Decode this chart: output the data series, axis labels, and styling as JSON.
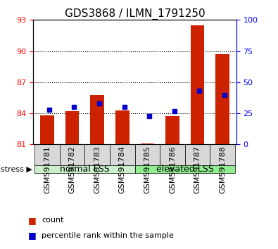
{
  "title": "GDS3868 / ILMN_1791250",
  "categories": [
    "GSM591781",
    "GSM591782",
    "GSM591783",
    "GSM591784",
    "GSM591785",
    "GSM591786",
    "GSM591787",
    "GSM591788"
  ],
  "red_values": [
    83.8,
    84.2,
    85.8,
    84.3,
    81.1,
    83.7,
    92.5,
    89.7
  ],
  "blue_values": [
    28,
    30,
    33,
    30,
    23,
    27,
    43,
    40
  ],
  "ylim_left": [
    81,
    93
  ],
  "ylim_right": [
    0,
    100
  ],
  "yticks_left": [
    81,
    84,
    87,
    90,
    93
  ],
  "yticks_right": [
    0,
    25,
    50,
    75,
    100
  ],
  "bar_bottom": 81,
  "red_color": "#cc2200",
  "blue_color": "#0000cc",
  "bar_width": 0.55,
  "group1_label": "normal LSS",
  "group2_label": "elevated LSS",
  "stress_label": "stress",
  "legend_red": "count",
  "legend_blue": "percentile rank within the sample",
  "title_fontsize": 11,
  "tick_fontsize": 8,
  "label_fontsize": 8,
  "group_label_fontsize": 9,
  "light_green": "#90ee90",
  "lighter_green": "#ccf0cc",
  "bg_color": "#d8d8d8",
  "blue_marker_size": 5
}
